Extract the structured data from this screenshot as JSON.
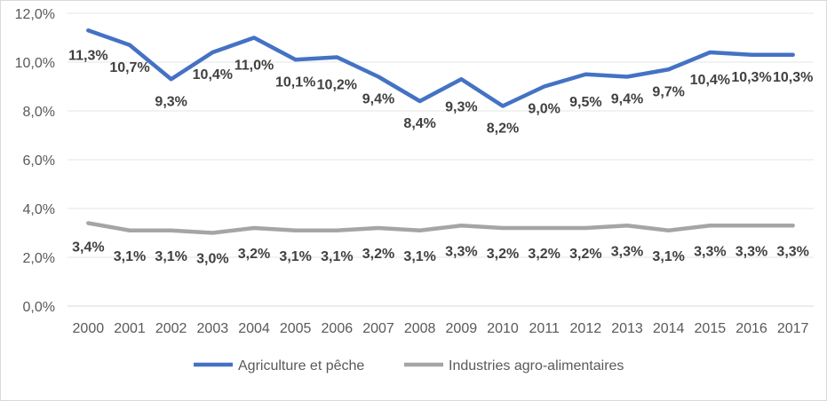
{
  "chart_data": {
    "type": "line",
    "title": "",
    "xlabel": "",
    "ylabel": "",
    "ylim": [
      0,
      12
    ],
    "y_ticks": [
      "0,0%",
      "2,0%",
      "4,0%",
      "6,0%",
      "8,0%",
      "10,0%",
      "12,0%"
    ],
    "grid": true,
    "legend_position": "bottom",
    "categories": [
      "2000",
      "2001",
      "2002",
      "2003",
      "2004",
      "2005",
      "2006",
      "2007",
      "2008",
      "2009",
      "2010",
      "2011",
      "2012",
      "2013",
      "2014",
      "2015",
      "2016",
      "2017"
    ],
    "series": [
      {
        "name": "Agriculture et pêche",
        "color": "#4472c4",
        "values": [
          11.3,
          10.7,
          9.3,
          10.4,
          11.0,
          10.1,
          10.2,
          9.4,
          8.4,
          9.3,
          8.2,
          9.0,
          9.5,
          9.4,
          9.7,
          10.4,
          10.3,
          10.3
        ],
        "labels": [
          "11,3%",
          "10,7%",
          "9,3%",
          "10,4%",
          "11,0%",
          "10,1%",
          "10,2%",
          "9,4%",
          "8,4%",
          "9,3%",
          "8,2%",
          "9,0%",
          "9,5%",
          "9,4%",
          "9,7%",
          "10,4%",
          "10,3%",
          "10,3%"
        ]
      },
      {
        "name": "Industries agro-alimentaires",
        "color": "#a5a5a5",
        "values": [
          3.4,
          3.1,
          3.1,
          3.0,
          3.2,
          3.1,
          3.1,
          3.2,
          3.1,
          3.3,
          3.2,
          3.2,
          3.2,
          3.3,
          3.1,
          3.3,
          3.3,
          3.3
        ],
        "labels": [
          "3,4%",
          "3,1%",
          "3,1%",
          "3,0%",
          "3,2%",
          "3,1%",
          "3,1%",
          "3,2%",
          "3,1%",
          "3,3%",
          "3,2%",
          "3,2%",
          "3,2%",
          "3,3%",
          "3,1%",
          "3,3%",
          "3,3%",
          "3,3%"
        ]
      }
    ]
  }
}
